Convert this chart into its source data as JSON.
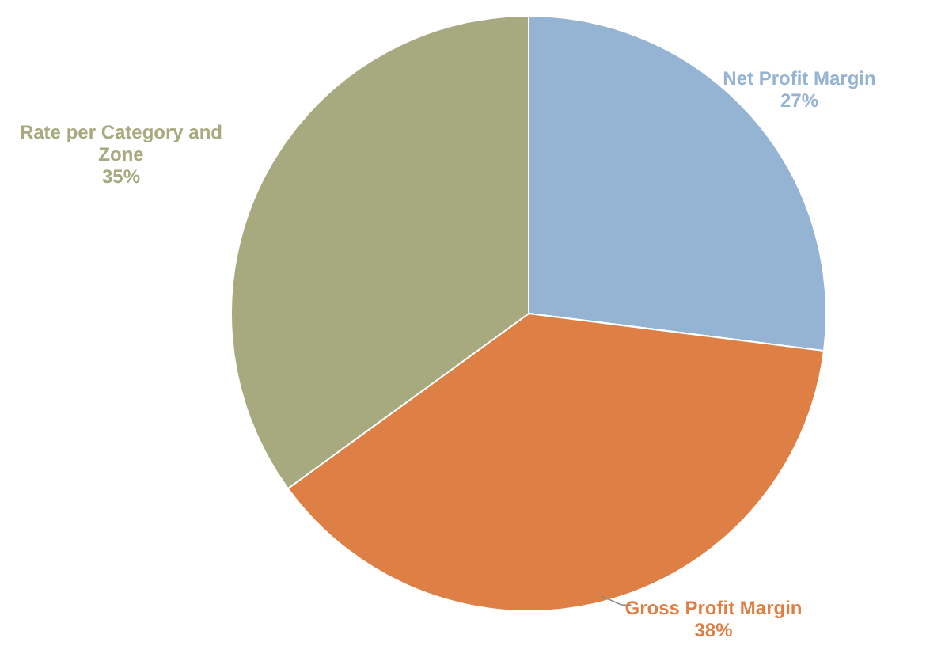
{
  "chart_data": {
    "type": "pie",
    "categories": [
      "Net Profit Margin",
      "Gross Profit Margin",
      "Rate per Category and Zone"
    ],
    "values": [
      27,
      38,
      35
    ],
    "colors": [
      "#95b3d3",
      "#de8046",
      "#a6aa7e"
    ],
    "value_labels": [
      "27%",
      "38%",
      "35%"
    ]
  }
}
